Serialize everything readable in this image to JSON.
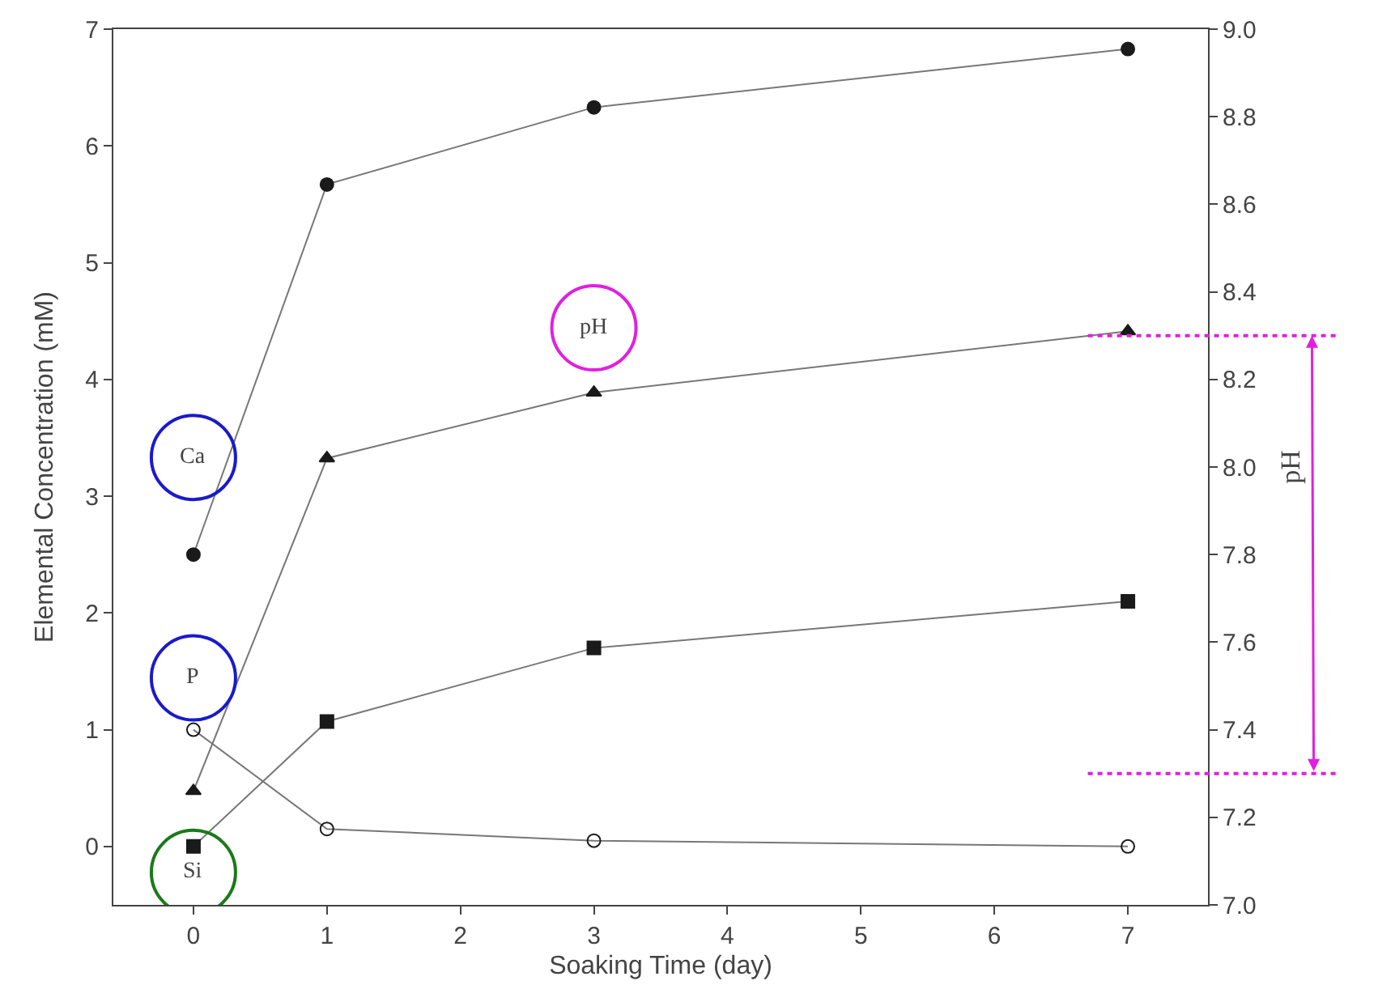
{
  "chart_data": {
    "type": "line",
    "xlabel": "Soaking Time (day)",
    "ylabel": "Elemental Concentration (mM)",
    "y2label": "pH",
    "x": [
      0,
      1,
      3,
      7
    ],
    "series": [
      {
        "name": "Ca",
        "color": "#1a1a1a",
        "marker": "circle",
        "values": [
          2.5,
          5.67,
          6.33,
          6.83
        ]
      },
      {
        "name": "pH",
        "color": "#1a1a1a",
        "marker": "triangle",
        "axis": "y2",
        "values": [
          7.26,
          8.02,
          8.17,
          8.31
        ]
      },
      {
        "name": "Si",
        "color": "#1a1a1a",
        "marker": "square",
        "values": [
          0.0,
          1.07,
          1.7,
          2.1
        ]
      },
      {
        "name": "P",
        "color": "#1a1a1a",
        "marker": "circle",
        "values": [
          1.0,
          0.15,
          0.05,
          0.0
        ]
      }
    ],
    "ref_lines": [
      {
        "axis": "y2",
        "value": 8.3,
        "color": "#e020e0",
        "line_style": "dotted"
      },
      {
        "axis": "y2",
        "value": 7.3,
        "color": "#e020e0",
        "line_style": "dotted"
      }
    ],
    "xlim": [
      -0.6,
      7.6
    ],
    "xticks": [
      0,
      1,
      2,
      3,
      4,
      5,
      6,
      7
    ],
    "ylim": [
      -0.5,
      7
    ],
    "yticks": [
      0,
      1,
      2,
      3,
      4,
      5,
      6,
      7
    ],
    "y2lim": [
      7.0,
      9.0
    ],
    "y2ticks": [
      {
        "value": 7.0,
        "label": "7.0"
      },
      7.2,
      7.4,
      7.6,
      7.8,
      {
        "value": 8.0,
        "label": "8.0"
      },
      8.2,
      8.4,
      8.6,
      8.8,
      {
        "value": 9.0,
        "label": "9.0"
      }
    ],
    "legend": false,
    "line_style": "solid"
  }
}
